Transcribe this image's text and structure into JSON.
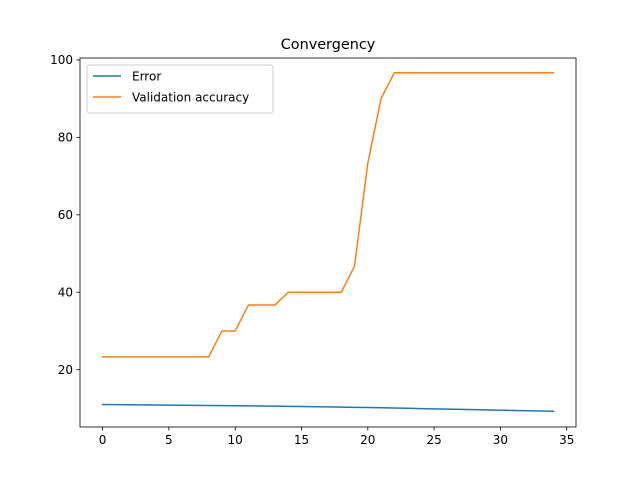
{
  "chart_data": {
    "type": "line",
    "title": "Convergency",
    "xlabel": "",
    "ylabel": "",
    "xlim": [
      -1.7,
      35.7
    ],
    "ylim": [
      5.2,
      100.5
    ],
    "xticks": [
      0,
      5,
      10,
      15,
      20,
      25,
      30,
      35
    ],
    "yticks": [
      20,
      40,
      60,
      80,
      100
    ],
    "grid": false,
    "legend_position": "top-left",
    "series": [
      {
        "name": "Error",
        "color": "#1f77b4",
        "x": [
          0,
          1,
          2,
          3,
          4,
          5,
          6,
          7,
          8,
          9,
          10,
          11,
          12,
          13,
          14,
          15,
          16,
          17,
          18,
          19,
          20,
          21,
          22,
          23,
          24,
          25,
          26,
          27,
          28,
          29,
          30,
          31,
          32,
          33,
          34
        ],
        "y": [
          11.0,
          10.97,
          10.94,
          10.91,
          10.88,
          10.85,
          10.82,
          10.79,
          10.76,
          10.73,
          10.7,
          10.66,
          10.62,
          10.58,
          10.54,
          10.49,
          10.44,
          10.39,
          10.34,
          10.28,
          10.22,
          10.16,
          10.1,
          10.03,
          9.96,
          9.89,
          9.82,
          9.75,
          9.68,
          9.61,
          9.54,
          9.47,
          9.4,
          9.33,
          9.26
        ]
      },
      {
        "name": "Validation accuracy",
        "color": "#ff7f0e",
        "x": [
          0,
          1,
          2,
          3,
          4,
          5,
          6,
          7,
          8,
          9,
          10,
          11,
          12,
          13,
          14,
          15,
          16,
          17,
          18,
          19,
          20,
          21,
          22,
          23,
          24,
          25,
          26,
          27,
          28,
          29,
          30,
          31,
          32,
          33,
          34
        ],
        "y": [
          23.3,
          23.3,
          23.3,
          23.3,
          23.3,
          23.3,
          23.3,
          23.3,
          23.3,
          30.0,
          30.0,
          36.7,
          36.7,
          36.7,
          40.0,
          40.0,
          40.0,
          40.0,
          40.0,
          46.7,
          73.3,
          90.0,
          96.7,
          96.7,
          96.7,
          96.7,
          96.7,
          96.7,
          96.7,
          96.7,
          96.7,
          96.7,
          96.7,
          96.7,
          96.7
        ]
      }
    ]
  }
}
